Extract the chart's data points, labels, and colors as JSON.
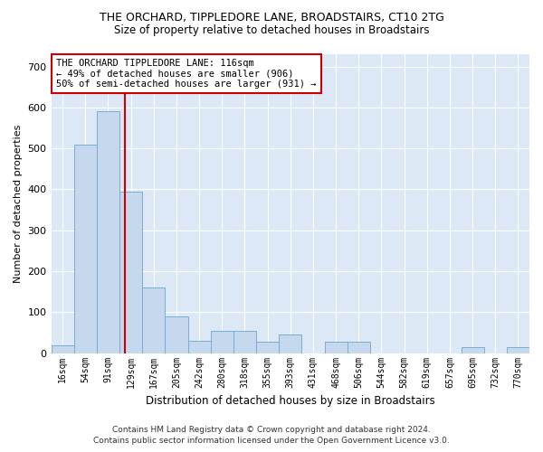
{
  "title": "THE ORCHARD, TIPPLEDORE LANE, BROADSTAIRS, CT10 2TG",
  "subtitle": "Size of property relative to detached houses in Broadstairs",
  "xlabel": "Distribution of detached houses by size in Broadstairs",
  "ylabel": "Number of detached properties",
  "bar_color": "#c5d8ed",
  "bar_edge_color": "#7aadd4",
  "background_color": "#dce8f5",
  "grid_color": "#ffffff",
  "annotation_box_color": "#ffffff",
  "annotation_border_color": "#cc0000",
  "vline_color": "#cc0000",
  "footer1": "Contains HM Land Registry data © Crown copyright and database right 2024.",
  "footer2": "Contains public sector information licensed under the Open Government Licence v3.0.",
  "annotation_line1": "THE ORCHARD TIPPLEDORE LANE: 116sqm",
  "annotation_line2": "← 49% of detached houses are smaller (906)",
  "annotation_line3": "50% of semi-detached houses are larger (931) →",
  "bin_labels": [
    "16sqm",
    "54sqm",
    "91sqm",
    "129sqm",
    "167sqm",
    "205sqm",
    "242sqm",
    "280sqm",
    "318sqm",
    "355sqm",
    "393sqm",
    "431sqm",
    "468sqm",
    "506sqm",
    "544sqm",
    "582sqm",
    "619sqm",
    "657sqm",
    "695sqm",
    "732sqm",
    "770sqm"
  ],
  "bar_heights": [
    20,
    510,
    590,
    395,
    160,
    90,
    30,
    55,
    55,
    28,
    45,
    0,
    28,
    28,
    0,
    0,
    0,
    0,
    15,
    0,
    15
  ],
  "vline_x_bin": 2.72,
  "ylim": [
    0,
    730
  ],
  "yticks": [
    0,
    100,
    200,
    300,
    400,
    500,
    600,
    700
  ]
}
